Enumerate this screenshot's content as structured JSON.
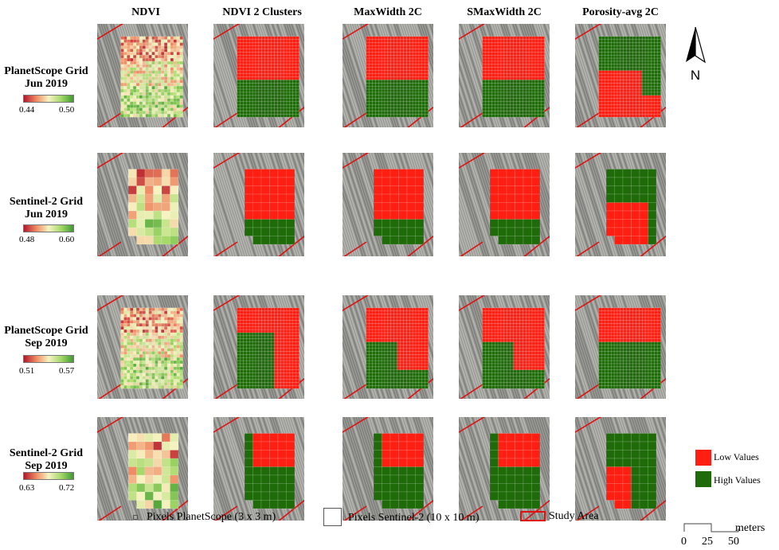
{
  "columns": [
    "NDVI",
    "NDVI 2 Clusters",
    "MaxWidth 2C",
    "SMaxWidth 2C",
    "Porosity-avg 2C"
  ],
  "rows": [
    {
      "grid": "PlanetScope Grid",
      "date": "Jun 2019",
      "min": "0.44",
      "max": "0.50"
    },
    {
      "grid": "Sentinel-2 Grid",
      "date": "Jun 2019",
      "min": "0.48",
      "max": "0.60"
    },
    {
      "grid": "PlanetScope Grid",
      "date": "Sep 2019",
      "min": "0.51",
      "max": "0.57"
    },
    {
      "grid": "Sentinel-2 Grid",
      "date": "Sep 2019",
      "min": "0.63",
      "max": "0.72"
    }
  ],
  "north_label": "N",
  "class_legend": {
    "low": "Low Values",
    "high": "High Values"
  },
  "bottom_legend": {
    "planetscope": "Pixels PlanetScope (3 x 3 m)",
    "sentinel": "Pixels Sentinel-2 (10 x 10 m)",
    "study_area": "Study Area"
  },
  "scale_bar": {
    "unit": "meters",
    "ticks": [
      "0",
      "25",
      "50"
    ]
  },
  "colors": {
    "low": "#fe1e12",
    "high": "#1f6b0a",
    "study_area": "#e01010",
    "ndvi_low": "#b2182b",
    "ndvi_mid": "#f7f3c2",
    "ndvi_high": "#3f9b30"
  }
}
